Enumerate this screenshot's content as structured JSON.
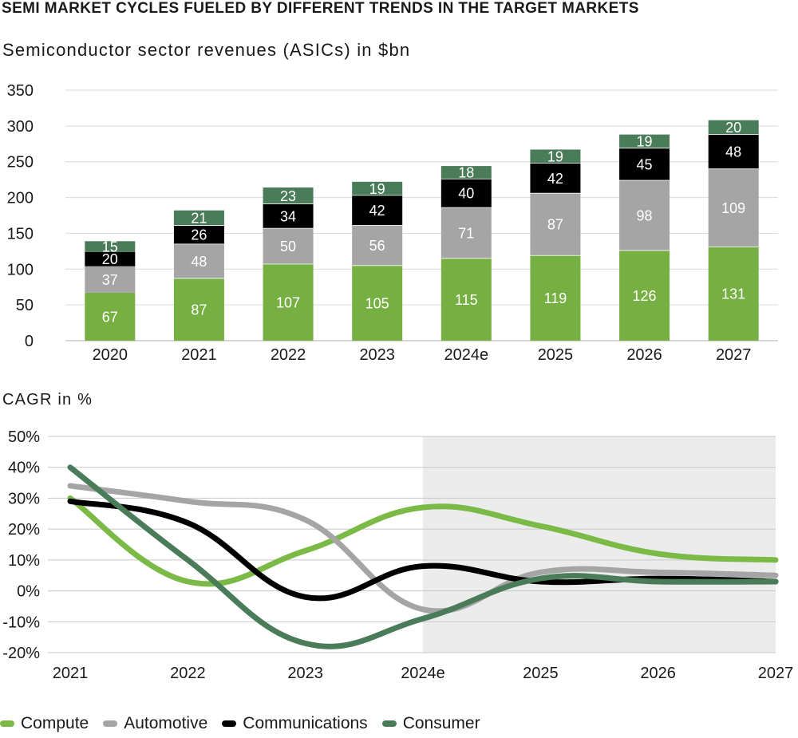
{
  "title": "SEMI MARKET CYCLES FUELED BY DIFFERENT TRENDS IN THE TARGET MARKETS",
  "chart_data": [
    {
      "type": "bar",
      "stacked": true,
      "title": "Semiconductor sector revenues (ASICs) in $bn",
      "ylim": [
        0,
        350
      ],
      "yticks": [
        0,
        50,
        100,
        150,
        200,
        250,
        300,
        350
      ],
      "categories": [
        "2020",
        "2021",
        "2022",
        "2023",
        "2024e",
        "2025",
        "2026",
        "2027"
      ],
      "series": [
        {
          "name": "Compute",
          "color": "#76b043",
          "label_color": "#ffffff",
          "values": [
            67,
            87,
            107,
            105,
            115,
            119,
            126,
            131
          ]
        },
        {
          "name": "Automotive",
          "color": "#a5a5a5",
          "label_color": "#ffffff",
          "values": [
            37,
            48,
            50,
            56,
            71,
            87,
            98,
            109
          ]
        },
        {
          "name": "Communications",
          "color": "#000000",
          "label_color": "#ffffff",
          "values": [
            20,
            26,
            34,
            42,
            40,
            42,
            45,
            48
          ]
        },
        {
          "name": "Consumer",
          "color": "#4a7c59",
          "label_color": "#ffffff",
          "values": [
            15,
            21,
            23,
            19,
            18,
            19,
            19,
            20
          ]
        }
      ]
    },
    {
      "type": "line",
      "title": "CAGR in %",
      "x": [
        "2021",
        "2022",
        "2023",
        "2024e",
        "2025",
        "2026",
        "2027"
      ],
      "ylim": [
        -20,
        50
      ],
      "yticks": [
        -20,
        -10,
        0,
        10,
        20,
        30,
        40,
        50
      ],
      "forecast_shading_from": "2024e",
      "series": [
        {
          "name": "Compute",
          "color": "#7cba47",
          "values": [
            30,
            3,
            13,
            27,
            21,
            12,
            10
          ]
        },
        {
          "name": "Automotive",
          "color": "#a5a5a5",
          "values": [
            34,
            29,
            23,
            -6,
            6,
            6,
            5
          ]
        },
        {
          "name": "Communications",
          "color": "#000000",
          "values": [
            29,
            22,
            -2,
            8,
            3,
            4,
            3
          ]
        },
        {
          "name": "Consumer",
          "color": "#4a7c59",
          "values": [
            40,
            10,
            -17,
            -9,
            4,
            3,
            3
          ]
        }
      ]
    }
  ],
  "legend": [
    {
      "label": "Compute",
      "color": "#7cba47"
    },
    {
      "label": "Automotive",
      "color": "#a5a5a5"
    },
    {
      "label": "Communications",
      "color": "#000000"
    },
    {
      "label": "Consumer",
      "color": "#4a7c59"
    }
  ]
}
